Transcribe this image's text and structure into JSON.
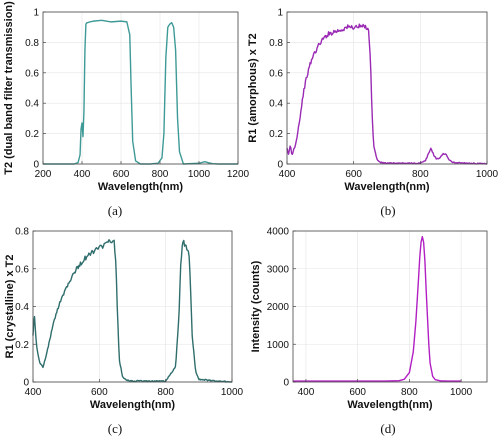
{
  "chart_data": [
    {
      "type": "line",
      "panel_caption": "(a)",
      "xlabel": "Wavelength(nm)",
      "ylabel": "T2 (dual band filter transmission)",
      "xlim": [
        200,
        1200
      ],
      "ylim": [
        0,
        1
      ],
      "xticks": [
        200,
        400,
        600,
        800,
        1000,
        1200
      ],
      "yticks": [
        0,
        0.2,
        0.4,
        0.6,
        0.8,
        1
      ],
      "ytick_labels": [
        "0",
        "0.2",
        "0.4",
        "0.6",
        "0.8",
        "1"
      ],
      "grid": true,
      "color": "#3e9a96",
      "series": [
        {
          "x": [
            200,
            360,
            380,
            390,
            395,
            400,
            405,
            410,
            415,
            420,
            425,
            430,
            440,
            460,
            500,
            550,
            600,
            630,
            645,
            652,
            660,
            675,
            700,
            750,
            790,
            810,
            820,
            830,
            840,
            850,
            860,
            870,
            880,
            890,
            900,
            920,
            1000,
            1030,
            1050,
            1070,
            1100,
            1200
          ],
          "y": [
            0,
            0,
            0.01,
            0.06,
            0.23,
            0.27,
            0.18,
            0.35,
            0.75,
            0.92,
            0.93,
            0.93,
            0.935,
            0.94,
            0.945,
            0.935,
            0.94,
            0.935,
            0.85,
            0.5,
            0.15,
            0.02,
            0,
            0,
            0.005,
            0.04,
            0.2,
            0.7,
            0.9,
            0.92,
            0.93,
            0.9,
            0.75,
            0.3,
            0.08,
            0,
            0.005,
            0.015,
            0.008,
            0.002,
            0,
            0
          ]
        }
      ]
    },
    {
      "type": "line",
      "panel_caption": "(b)",
      "xlabel": "Wavelength(nm)",
      "ylabel": "R1 (amorphous) x T2",
      "xlim": [
        400,
        1000
      ],
      "ylim": [
        0,
        1
      ],
      "xticks": [
        400,
        600,
        800,
        1000
      ],
      "yticks": [
        0,
        0.2,
        0.4,
        0.6,
        0.8,
        1
      ],
      "ytick_labels": [
        "0",
        "0.2",
        "0.4",
        "0.6",
        "0.8",
        "1"
      ],
      "grid": true,
      "color": "#9a2ab4",
      "noise": 0.012,
      "series": [
        {
          "x": [
            400,
            405,
            410,
            415,
            420,
            425,
            430,
            440,
            450,
            460,
            470,
            480,
            490,
            500,
            520,
            540,
            560,
            580,
            600,
            620,
            640,
            645,
            650,
            655,
            660,
            670,
            680,
            700,
            750,
            800,
            815,
            825,
            832,
            840,
            850,
            860,
            868,
            875,
            882,
            890,
            900,
            950,
            1000
          ],
          "y": [
            0.1,
            0.06,
            0.13,
            0.05,
            0.1,
            0.12,
            0.18,
            0.32,
            0.48,
            0.58,
            0.66,
            0.72,
            0.76,
            0.8,
            0.85,
            0.87,
            0.88,
            0.9,
            0.9,
            0.905,
            0.9,
            0.88,
            0.7,
            0.35,
            0.12,
            0.03,
            0.01,
            0.005,
            0.005,
            0.005,
            0.02,
            0.07,
            0.105,
            0.06,
            0.03,
            0.045,
            0.065,
            0.07,
            0.04,
            0.02,
            0.01,
            0.005,
            0
          ]
        }
      ]
    },
    {
      "type": "line",
      "panel_caption": "(c)",
      "xlabel": "Wavelength(nm)",
      "ylabel": "R1 (crystalline) x T2",
      "xlim": [
        400,
        1000
      ],
      "ylim": [
        0,
        0.8
      ],
      "xticks": [
        400,
        600,
        800,
        1000
      ],
      "yticks": [
        0,
        0.2,
        0.4,
        0.6,
        0.8
      ],
      "ytick_labels": [
        "0",
        "0.2",
        "0.4",
        "0.6",
        "0.8"
      ],
      "grid": true,
      "color": "#2f6e6c",
      "noise": 0.01,
      "series": [
        {
          "x": [
            400,
            404,
            410,
            420,
            430,
            440,
            450,
            460,
            480,
            500,
            520,
            540,
            560,
            580,
            600,
            620,
            630,
            645,
            650,
            655,
            660,
            670,
            680,
            700,
            750,
            800,
            830,
            840,
            845,
            850,
            855,
            860,
            870,
            875,
            880,
            890,
            900,
            950,
            1000
          ],
          "y": [
            0.25,
            0.37,
            0.2,
            0.1,
            0.08,
            0.14,
            0.22,
            0.3,
            0.42,
            0.5,
            0.57,
            0.62,
            0.66,
            0.69,
            0.71,
            0.73,
            0.745,
            0.74,
            0.62,
            0.35,
            0.12,
            0.03,
            0.01,
            0.005,
            0.005,
            0.005,
            0.08,
            0.35,
            0.62,
            0.72,
            0.74,
            0.72,
            0.7,
            0.5,
            0.25,
            0.06,
            0.015,
            0.005,
            0
          ]
        }
      ]
    },
    {
      "type": "line",
      "panel_caption": "(d)",
      "xlabel": "Wavelength(nm)",
      "ylabel": "Intensity (counts)",
      "xlim": [
        350,
        1100
      ],
      "ylim": [
        0,
        4000
      ],
      "xticks": [
        400,
        600,
        800,
        1000
      ],
      "yticks": [
        0,
        1000,
        2000,
        3000,
        4000
      ],
      "ytick_labels": [
        "0",
        "1000",
        "2000",
        "3000",
        "4000"
      ],
      "grid": true,
      "color": "#b21fc3",
      "series": [
        {
          "x": [
            350,
            400,
            500,
            600,
            700,
            760,
            780,
            800,
            815,
            825,
            835,
            840,
            845,
            850,
            855,
            860,
            865,
            870,
            875,
            880,
            890,
            900,
            920,
            950,
            1000
          ],
          "y": [
            25,
            25,
            25,
            25,
            25,
            35,
            70,
            250,
            800,
            1600,
            2700,
            3300,
            3700,
            3850,
            3700,
            3200,
            2400,
            1700,
            1000,
            500,
            150,
            60,
            30,
            25,
            25
          ]
        }
      ]
    }
  ]
}
